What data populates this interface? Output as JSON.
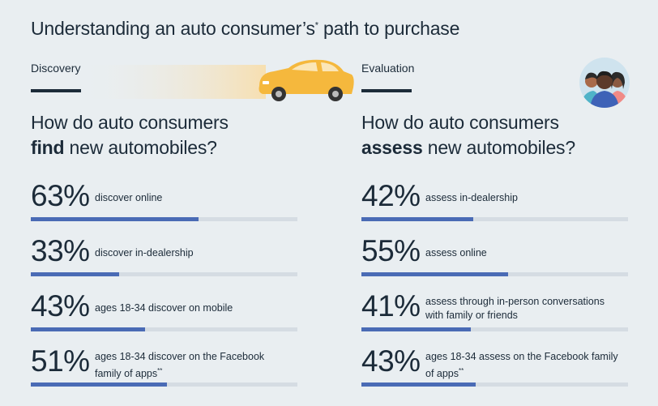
{
  "header": {
    "title_main": "Understanding an auto consumer’s",
    "title_sup": "*",
    "title_end": " path to purchase"
  },
  "discovery": {
    "label": "Discovery",
    "heading_line1": "How do auto consumers",
    "heading_bold": "find",
    "heading_rest": " new automobiles?",
    "stats": [
      {
        "pct": "63%",
        "desc": "discover online",
        "desc_sup": "",
        "value": 63
      },
      {
        "pct": "33%",
        "desc": "discover in-dealership",
        "desc_sup": "",
        "value": 33
      },
      {
        "pct": "43%",
        "desc": "ages 18-34 discover on mobile",
        "desc_sup": "",
        "value": 43
      },
      {
        "pct": "51%",
        "desc": "ages 18-34 discover on the Facebook family of apps",
        "desc_sup": "**",
        "value": 51
      }
    ]
  },
  "evaluation": {
    "label": "Evaluation",
    "heading_line1": "How do auto consumers",
    "heading_bold": "assess",
    "heading_rest": " new automobiles?",
    "stats": [
      {
        "pct": "42%",
        "desc": "assess in-dealership",
        "desc_sup": "",
        "value": 42
      },
      {
        "pct": "55%",
        "desc": "assess online",
        "desc_sup": "",
        "value": 55
      },
      {
        "pct": "41%",
        "desc": "assess through in-person conversations with family or friends",
        "desc_sup": "",
        "value": 41
      },
      {
        "pct": "43%",
        "desc": "ages 18-34 assess on the Facebook family of apps",
        "desc_sup": "**",
        "value": 43
      }
    ]
  },
  "colors": {
    "bar_fill": "#4a6bb5",
    "bar_track": "#d5dce3",
    "text": "#1c2b39",
    "car": "#f5b83d"
  },
  "icons": {
    "car": "car-illustration-icon",
    "people": "people-avatar-icon"
  }
}
